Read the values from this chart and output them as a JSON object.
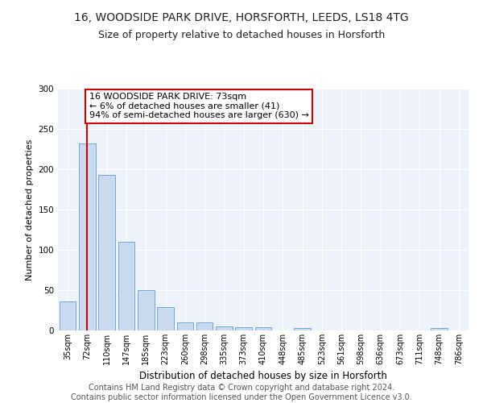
{
  "title1": "16, WOODSIDE PARK DRIVE, HORSFORTH, LEEDS, LS18 4TG",
  "title2": "Size of property relative to detached houses in Horsforth",
  "xlabel": "Distribution of detached houses by size in Horsforth",
  "ylabel": "Number of detached properties",
  "categories": [
    "35sqm",
    "72sqm",
    "110sqm",
    "147sqm",
    "185sqm",
    "223sqm",
    "260sqm",
    "298sqm",
    "335sqm",
    "373sqm",
    "410sqm",
    "448sqm",
    "485sqm",
    "523sqm",
    "561sqm",
    "598sqm",
    "636sqm",
    "673sqm",
    "711sqm",
    "748sqm",
    "786sqm"
  ],
  "values": [
    36,
    232,
    193,
    110,
    50,
    29,
    10,
    10,
    5,
    4,
    4,
    0,
    3,
    0,
    0,
    0,
    0,
    0,
    0,
    3,
    0
  ],
  "bar_color": "#c8d9f0",
  "bar_edge_color": "#6fa8d6",
  "property_line_x": 1,
  "property_line_color": "#cc0000",
  "annotation_text": "16 WOODSIDE PARK DRIVE: 73sqm\n← 6% of detached houses are smaller (41)\n94% of semi-detached houses are larger (630) →",
  "annotation_box_color": "#ffffff",
  "annotation_box_edge_color": "#cc0000",
  "ylim": [
    0,
    300
  ],
  "yticks": [
    0,
    50,
    100,
    150,
    200,
    250,
    300
  ],
  "footer_text": "Contains HM Land Registry data © Crown copyright and database right 2024.\nContains public sector information licensed under the Open Government Licence v3.0.",
  "background_color": "#eef2fa",
  "title1_fontsize": 10,
  "title2_fontsize": 9,
  "xlabel_fontsize": 8.5,
  "ylabel_fontsize": 8,
  "annotation_fontsize": 8,
  "footer_fontsize": 7
}
